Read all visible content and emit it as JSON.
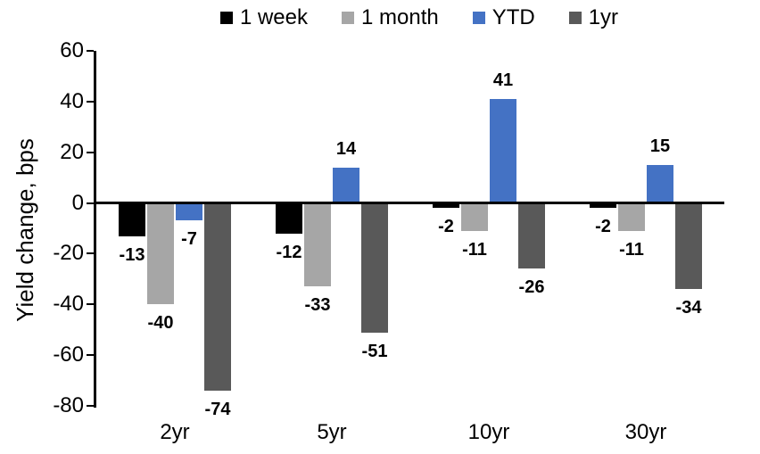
{
  "chart_data": {
    "type": "bar",
    "title": "",
    "ylabel": "Yield change, bps",
    "xlabel": "",
    "categories": [
      "2yr",
      "5yr",
      "10yr",
      "30yr"
    ],
    "series": [
      {
        "name": "1 week",
        "color": "#000000",
        "values": [
          -13,
          -12,
          -2,
          -2
        ]
      },
      {
        "name": "1 month",
        "color": "#A6A6A6",
        "values": [
          -40,
          -33,
          -11,
          -11
        ]
      },
      {
        "name": "YTD",
        "color": "#4472C4",
        "values": [
          -7,
          14,
          41,
          15
        ]
      },
      {
        "name": "1yr",
        "color": "#595959",
        "values": [
          -74,
          -51,
          -26,
          -34
        ]
      }
    ],
    "ylim": [
      -80,
      60
    ],
    "yticks": [
      60,
      40,
      20,
      0,
      -20,
      -40,
      -60,
      -80
    ],
    "grid": false,
    "legend_position": "top",
    "data_labels": "outside-end",
    "axis_color": "#000000",
    "background_color": "#FFFFFF"
  }
}
